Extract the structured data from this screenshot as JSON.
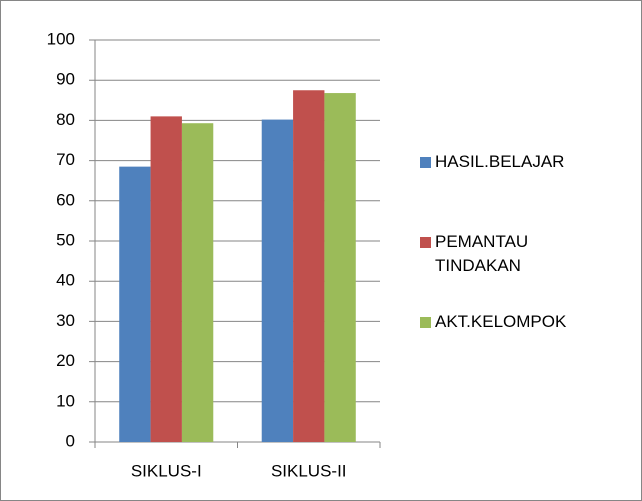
{
  "chart_data": {
    "type": "bar",
    "categories": [
      "SIKLUS-I",
      "SIKLUS-II"
    ],
    "series": [
      {
        "name": "HASIL.BELAJAR",
        "color": "#4f81bd",
        "values": [
          68.5,
          80.2
        ]
      },
      {
        "name": "PEMANTAU TINDAKAN",
        "color": "#c0504d",
        "values": [
          81,
          87.5
        ]
      },
      {
        "name": "AKT.KELOMPOK",
        "color": "#9bbb59",
        "values": [
          79.3,
          86.8
        ]
      }
    ],
    "ylim": [
      0,
      100
    ],
    "yticks": [
      0,
      10,
      20,
      30,
      40,
      50,
      60,
      70,
      80,
      90,
      100
    ],
    "grid": true,
    "legend": "right"
  }
}
